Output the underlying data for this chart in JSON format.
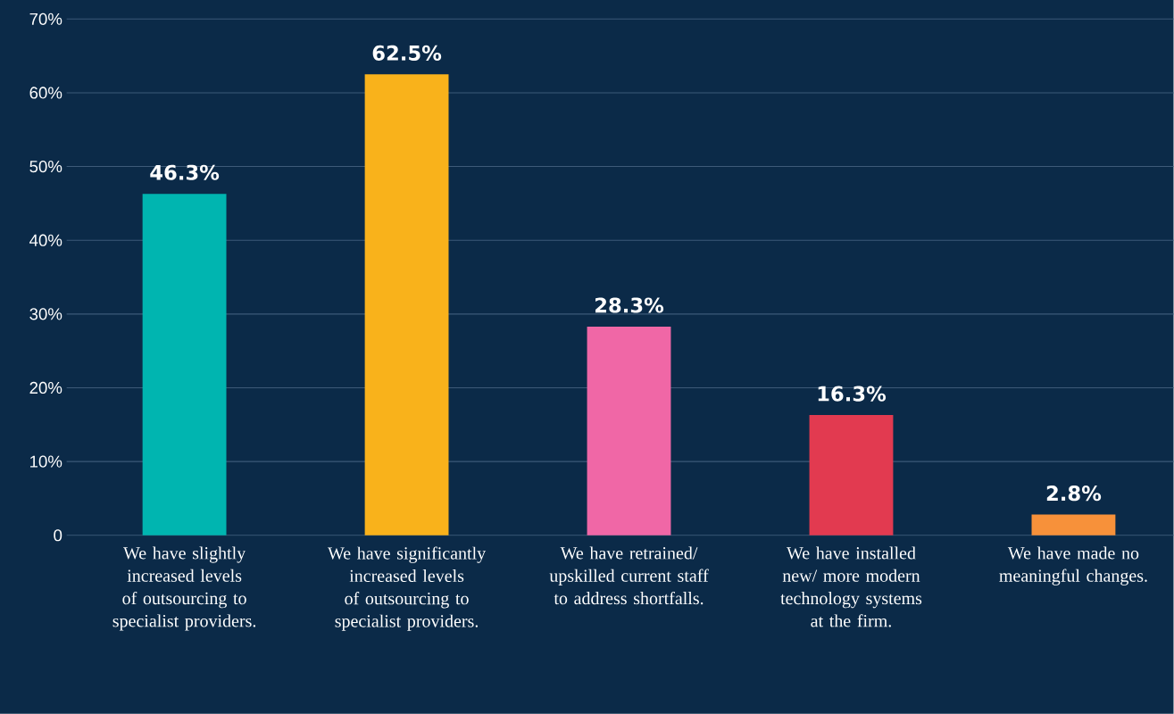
{
  "chart_data": {
    "type": "bar",
    "categories": [
      "We have slightly increased levels of outsourcing to specialist providers.",
      "We have significantly increased levels of outsourcing to specialist providers.",
      "We have retrained/ upskilled current staff to address shortfalls.",
      "We have installed new/ more modern technology systems at the firm.",
      "We have made no meaningful changes."
    ],
    "values": [
      46.3,
      62.5,
      28.3,
      16.3,
      2.8
    ],
    "value_labels": [
      "46.3%",
      "62.5%",
      "28.3%",
      "16.3%",
      "2.8%"
    ],
    "colors": [
      "#00b5b0",
      "#f9b21b",
      "#f067a6",
      "#e23a50",
      "#f7913a"
    ],
    "ylim": [
      0,
      70
    ],
    "yticks": [
      0,
      {
        "value": 10,
        "label": "10%"
      },
      {
        "value": 20,
        "label": "20%"
      },
      {
        "value": 30,
        "label": "30%"
      },
      {
        "value": 40,
        "label": "40%"
      },
      {
        "value": 50,
        "label": "50%"
      },
      {
        "value": 60,
        "label": "60%"
      },
      {
        "value": 70,
        "label": "70%"
      }
    ],
    "grid": "y"
  }
}
